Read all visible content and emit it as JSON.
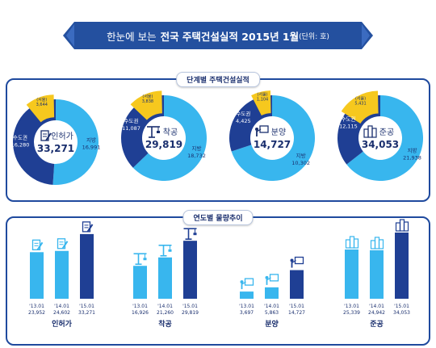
{
  "header": {
    "prefix": "한눈에 보는",
    "title": "전국 주택건설실적 2015년 1월",
    "unit": "(단위: 호)"
  },
  "sections": {
    "stage_title": "단계별 주택건설실적",
    "trend_title": "연도별 물량추이"
  },
  "colors": {
    "capital": "#1f3f94",
    "local": "#38b6ee",
    "seoul": "#f6c81e",
    "bar_past": "#38b6ee",
    "bar_current": "#1f3f94",
    "banner": "#24509f"
  },
  "chart_data": [
    {
      "type": "pie",
      "name": "인허가",
      "total": "33,271",
      "icon": "document-pen-icon",
      "slices": [
        {
          "label": "수도권",
          "value": 16280,
          "display": "16,280"
        },
        {
          "label": "지방",
          "value": 16991,
          "display": "16,991"
        }
      ],
      "highlight": {
        "label": "(서울)",
        "value": 3644,
        "display": "3,644"
      }
    },
    {
      "type": "pie",
      "name": "착공",
      "total": "29,819",
      "icon": "crane-icon",
      "slices": [
        {
          "label": "수도권",
          "value": 11087,
          "display": "11,087"
        },
        {
          "label": "지방",
          "value": 18732,
          "display": "18,732"
        }
      ],
      "highlight": {
        "label": "(서울)",
        "value": 3838,
        "display": "3,838"
      }
    },
    {
      "type": "pie",
      "name": "분양",
      "total": "14,727",
      "icon": "presenter-board-icon",
      "slices": [
        {
          "label": "수도권",
          "value": 4425,
          "display": "4,425"
        },
        {
          "label": "지방",
          "value": 10302,
          "display": "10,302"
        }
      ],
      "highlight": {
        "label": "(서울)",
        "value": 1104,
        "display": "1,104"
      }
    },
    {
      "type": "pie",
      "name": "준공",
      "total": "34,053",
      "icon": "buildings-icon",
      "slices": [
        {
          "label": "수도권",
          "value": 12115,
          "display": "12,115"
        },
        {
          "label": "지방",
          "value": 21938,
          "display": "21,938"
        }
      ],
      "highlight": {
        "label": "(서울)",
        "value": 5431,
        "display": "5,431"
      }
    },
    {
      "type": "bar",
      "groups": [
        {
          "name": "인허가",
          "icon": "document-pen-icon",
          "categories": [
            "'13.01",
            "'14.01",
            "'15.01"
          ],
          "values": [
            23952,
            24602,
            33271
          ],
          "labels": [
            "23,952",
            "24,602",
            "33,271"
          ]
        },
        {
          "name": "착공",
          "icon": "crane-icon",
          "categories": [
            "'13.01",
            "'14.01",
            "'15.01"
          ],
          "values": [
            16926,
            21260,
            29819
          ],
          "labels": [
            "16,926",
            "21,260",
            "29,819"
          ]
        },
        {
          "name": "분양",
          "icon": "presenter-board-icon",
          "categories": [
            "'13.01",
            "'14.01",
            "'15.01"
          ],
          "values": [
            3697,
            5863,
            14727
          ],
          "labels": [
            "3,697",
            "5,863",
            "14,727"
          ]
        },
        {
          "name": "준공",
          "icon": "buildings-icon",
          "categories": [
            "'13.01",
            "'14.01",
            "'15.01"
          ],
          "values": [
            25339,
            24942,
            34053
          ],
          "labels": [
            "25,339",
            "24,942",
            "34,053"
          ]
        }
      ]
    }
  ]
}
